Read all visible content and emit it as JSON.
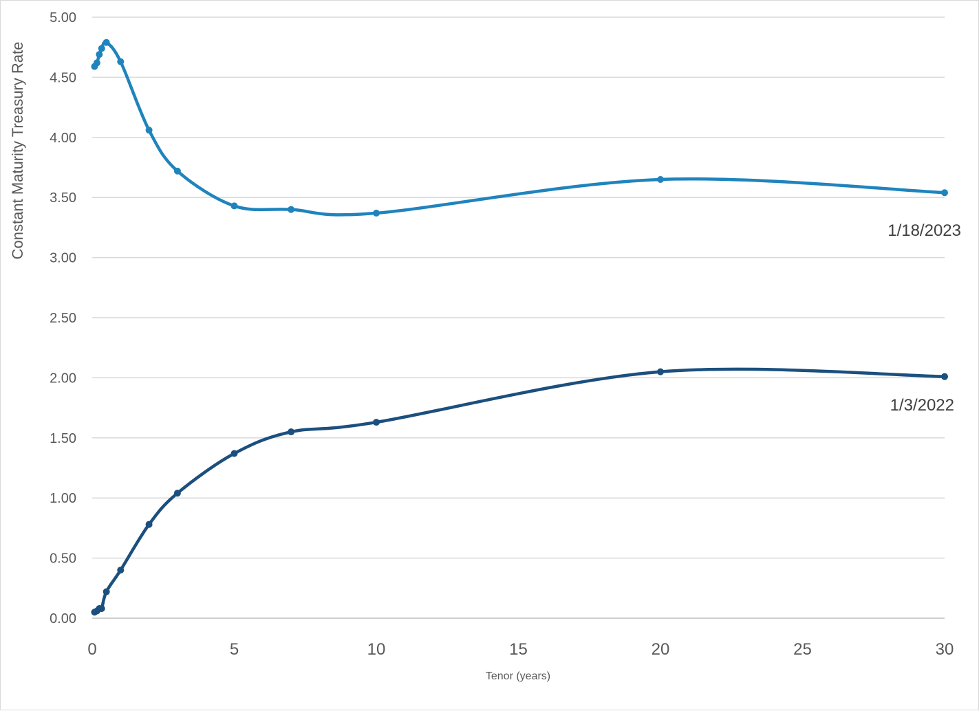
{
  "chart_data": {
    "type": "line",
    "xlabel": "Tenor (years)",
    "ylabel": "Constant Maturity Treasury Rate",
    "xlim": [
      0,
      30
    ],
    "ylim": [
      0,
      5
    ],
    "x_ticks": [
      "0",
      "5",
      "10",
      "15",
      "20",
      "25",
      "30"
    ],
    "y_ticks": [
      "0.00",
      "0.50",
      "1.00",
      "1.50",
      "2.00",
      "2.50",
      "3.00",
      "3.50",
      "4.00",
      "4.50",
      "5.00"
    ],
    "grid": "horizontal",
    "smooth": true,
    "series": [
      {
        "name": "1/18/2023",
        "color": "#1f84bd",
        "x": [
          0.083,
          0.167,
          0.25,
          0.333,
          0.5,
          1,
          2,
          3,
          5,
          7,
          10,
          20,
          30
        ],
        "y": [
          4.59,
          4.62,
          4.69,
          4.74,
          4.79,
          4.63,
          4.06,
          3.72,
          3.43,
          3.4,
          3.37,
          3.65,
          3.54
        ]
      },
      {
        "name": "1/3/2022",
        "color": "#1b4f7e",
        "x": [
          0.083,
          0.167,
          0.25,
          0.333,
          0.5,
          1,
          2,
          3,
          5,
          7,
          10,
          20,
          30
        ],
        "y": [
          0.05,
          0.06,
          0.08,
          0.08,
          0.22,
          0.4,
          0.78,
          1.04,
          1.37,
          1.55,
          1.63,
          2.05,
          2.01
        ]
      }
    ]
  }
}
